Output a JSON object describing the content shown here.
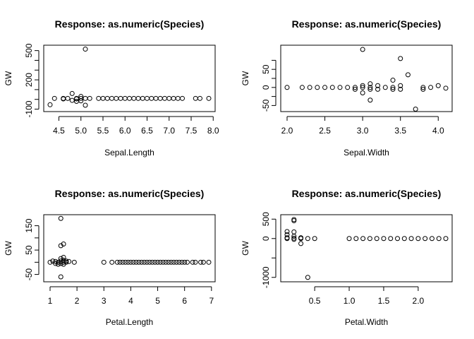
{
  "chart_data": [
    {
      "type": "scatter",
      "title": "Response: as.numeric(Species)",
      "xlabel": "Sepal.Length",
      "ylabel": "GW",
      "xlim": [
        4.3,
        7.9
      ],
      "ylim": [
        -100,
        530
      ],
      "xticks": [
        4.5,
        5.0,
        5.5,
        6.0,
        6.5,
        7.0,
        7.5,
        8.0
      ],
      "xtick_labels": [
        "4.5",
        "5.0",
        "5.5",
        "6.0",
        "6.5",
        "7.0",
        "7.5",
        "8.0"
      ],
      "yticks": [
        -100,
        200,
        500
      ],
      "ytick_labels": [
        "-100",
        "200",
        "500"
      ],
      "y_minor_ticks": [
        0,
        100,
        300,
        400
      ],
      "points": [
        {
          "x": 4.3,
          "y": -55
        },
        {
          "x": 4.4,
          "y": 10
        },
        {
          "x": 4.6,
          "y": 10
        },
        {
          "x": 4.6,
          "y": 5
        },
        {
          "x": 4.7,
          "y": 10
        },
        {
          "x": 4.8,
          "y": 60
        },
        {
          "x": 4.8,
          "y": -10
        },
        {
          "x": 4.9,
          "y": 10
        },
        {
          "x": 4.9,
          "y": -20
        },
        {
          "x": 4.9,
          "y": 5
        },
        {
          "x": 5.0,
          "y": 10
        },
        {
          "x": 5.0,
          "y": 30
        },
        {
          "x": 5.0,
          "y": -15
        },
        {
          "x": 5.1,
          "y": 515
        },
        {
          "x": 5.1,
          "y": 10
        },
        {
          "x": 5.1,
          "y": -60
        },
        {
          "x": 5.2,
          "y": 10
        },
        {
          "x": 5.4,
          "y": 10
        },
        {
          "x": 5.5,
          "y": 10
        },
        {
          "x": 5.6,
          "y": 10
        },
        {
          "x": 5.7,
          "y": 10
        },
        {
          "x": 5.8,
          "y": 10
        },
        {
          "x": 5.9,
          "y": 10
        },
        {
          "x": 6.0,
          "y": 10
        },
        {
          "x": 6.1,
          "y": 10
        },
        {
          "x": 6.2,
          "y": 10
        },
        {
          "x": 6.3,
          "y": 10
        },
        {
          "x": 6.4,
          "y": 10
        },
        {
          "x": 6.5,
          "y": 10
        },
        {
          "x": 6.6,
          "y": 10
        },
        {
          "x": 6.7,
          "y": 10
        },
        {
          "x": 6.8,
          "y": 10
        },
        {
          "x": 6.9,
          "y": 10
        },
        {
          "x": 7.0,
          "y": 10
        },
        {
          "x": 7.1,
          "y": 10
        },
        {
          "x": 7.2,
          "y": 10
        },
        {
          "x": 7.3,
          "y": 10
        },
        {
          "x": 7.6,
          "y": 10
        },
        {
          "x": 7.7,
          "y": 10
        },
        {
          "x": 7.9,
          "y": 10
        }
      ]
    },
    {
      "type": "scatter",
      "title": "Response: as.numeric(Species)",
      "xlabel": "Sepal.Width",
      "ylabel": "GW",
      "xlim": [
        2.0,
        4.1
      ],
      "ylim": [
        -60,
        110
      ],
      "xticks": [
        2.0,
        2.5,
        3.0,
        3.5,
        4.0
      ],
      "xtick_labels": [
        "2.0",
        "2.5",
        "3.0",
        "3.5",
        "4.0"
      ],
      "yticks": [
        -50,
        0,
        50
      ],
      "ytick_labels": [
        "-50",
        "0",
        "50"
      ],
      "y_minor_ticks": [
        -25,
        25,
        75
      ],
      "points": [
        {
          "x": 2.0,
          "y": 0
        },
        {
          "x": 2.2,
          "y": 0
        },
        {
          "x": 2.3,
          "y": 0
        },
        {
          "x": 2.4,
          "y": 0
        },
        {
          "x": 2.5,
          "y": 0
        },
        {
          "x": 2.6,
          "y": 0
        },
        {
          "x": 2.7,
          "y": 0
        },
        {
          "x": 2.8,
          "y": 0
        },
        {
          "x": 2.9,
          "y": 0
        },
        {
          "x": 2.9,
          "y": -5
        },
        {
          "x": 3.0,
          "y": 105
        },
        {
          "x": 3.0,
          "y": 0
        },
        {
          "x": 3.0,
          "y": 5
        },
        {
          "x": 3.0,
          "y": -15
        },
        {
          "x": 3.1,
          "y": 0
        },
        {
          "x": 3.1,
          "y": -5
        },
        {
          "x": 3.1,
          "y": 10
        },
        {
          "x": 3.1,
          "y": -35
        },
        {
          "x": 3.2,
          "y": 5
        },
        {
          "x": 3.2,
          "y": -5
        },
        {
          "x": 3.3,
          "y": 0
        },
        {
          "x": 3.4,
          "y": 20
        },
        {
          "x": 3.4,
          "y": 0
        },
        {
          "x": 3.4,
          "y": -5
        },
        {
          "x": 3.5,
          "y": 80
        },
        {
          "x": 3.5,
          "y": 5
        },
        {
          "x": 3.5,
          "y": -5
        },
        {
          "x": 3.6,
          "y": 35
        },
        {
          "x": 3.7,
          "y": -60
        },
        {
          "x": 3.8,
          "y": 0
        },
        {
          "x": 3.8,
          "y": -5
        },
        {
          "x": 3.9,
          "y": 0
        },
        {
          "x": 4.0,
          "y": 5
        },
        {
          "x": 4.1,
          "y": -2
        }
      ]
    },
    {
      "type": "scatter",
      "title": "Response: as.numeric(Species)",
      "xlabel": "Petal.Length",
      "ylabel": "GW",
      "xlim": [
        1.0,
        6.9
      ],
      "ylim": [
        -70,
        185
      ],
      "xticks": [
        1,
        2,
        3,
        4,
        5,
        6,
        7
      ],
      "xtick_labels": [
        "1",
        "2",
        "3",
        "4",
        "5",
        "6",
        "7"
      ],
      "yticks": [
        -50,
        50,
        150
      ],
      "ytick_labels": [
        "-50",
        "50",
        "150"
      ],
      "y_minor_ticks": [
        0,
        100
      ],
      "points": [
        {
          "x": 1.0,
          "y": 0
        },
        {
          "x": 1.1,
          "y": 5
        },
        {
          "x": 1.2,
          "y": -5
        },
        {
          "x": 1.2,
          "y": 3
        },
        {
          "x": 1.3,
          "y": 0
        },
        {
          "x": 1.3,
          "y": -8
        },
        {
          "x": 1.4,
          "y": 180
        },
        {
          "x": 1.4,
          "y": 68
        },
        {
          "x": 1.4,
          "y": 15
        },
        {
          "x": 1.4,
          "y": 5
        },
        {
          "x": 1.4,
          "y": -5
        },
        {
          "x": 1.4,
          "y": -60
        },
        {
          "x": 1.5,
          "y": 75
        },
        {
          "x": 1.5,
          "y": 20
        },
        {
          "x": 1.5,
          "y": 8
        },
        {
          "x": 1.5,
          "y": 0
        },
        {
          "x": 1.5,
          "y": -8
        },
        {
          "x": 1.6,
          "y": 5
        },
        {
          "x": 1.6,
          "y": 0
        },
        {
          "x": 1.7,
          "y": 3
        },
        {
          "x": 1.9,
          "y": 0
        },
        {
          "x": 3.0,
          "y": 0
        },
        {
          "x": 3.3,
          "y": 0
        },
        {
          "x": 3.5,
          "y": 0
        },
        {
          "x": 3.6,
          "y": 0
        },
        {
          "x": 3.7,
          "y": 0
        },
        {
          "x": 3.8,
          "y": 0
        },
        {
          "x": 3.9,
          "y": 0
        },
        {
          "x": 4.0,
          "y": 0
        },
        {
          "x": 4.1,
          "y": 0
        },
        {
          "x": 4.2,
          "y": 0
        },
        {
          "x": 4.3,
          "y": 0
        },
        {
          "x": 4.4,
          "y": 0
        },
        {
          "x": 4.5,
          "y": 0
        },
        {
          "x": 4.6,
          "y": 0
        },
        {
          "x": 4.7,
          "y": 0
        },
        {
          "x": 4.8,
          "y": 0
        },
        {
          "x": 4.9,
          "y": 0
        },
        {
          "x": 5.0,
          "y": 0
        },
        {
          "x": 5.1,
          "y": 0
        },
        {
          "x": 5.2,
          "y": 0
        },
        {
          "x": 5.3,
          "y": 0
        },
        {
          "x": 5.4,
          "y": 0
        },
        {
          "x": 5.5,
          "y": 0
        },
        {
          "x": 5.6,
          "y": 0
        },
        {
          "x": 5.7,
          "y": 0
        },
        {
          "x": 5.8,
          "y": 0
        },
        {
          "x": 5.9,
          "y": 0
        },
        {
          "x": 6.0,
          "y": 0
        },
        {
          "x": 6.1,
          "y": 0
        },
        {
          "x": 6.3,
          "y": 0
        },
        {
          "x": 6.4,
          "y": 0
        },
        {
          "x": 6.6,
          "y": 0
        },
        {
          "x": 6.7,
          "y": 0
        },
        {
          "x": 6.9,
          "y": 0
        }
      ]
    },
    {
      "type": "scatter",
      "title": "Response: as.numeric(Species)",
      "xlabel": "Petal.Width",
      "ylabel": "GW",
      "xlim": [
        0.1,
        2.4
      ],
      "ylim": [
        -1050,
        550
      ],
      "xticks": [
        0.5,
        1.0,
        1.5,
        2.0
      ],
      "xtick_labels": [
        "0.5",
        "1.0",
        "1.5",
        "2.0"
      ],
      "yticks": [
        -1000,
        0,
        500
      ],
      "ytick_labels": [
        "-1000",
        "0",
        "500"
      ],
      "y_minor_ticks": [
        -500
      ],
      "points": [
        {
          "x": 0.1,
          "y": 180
        },
        {
          "x": 0.1,
          "y": 100
        },
        {
          "x": 0.1,
          "y": 20
        },
        {
          "x": 0.1,
          "y": 0
        },
        {
          "x": 0.2,
          "y": 490
        },
        {
          "x": 0.2,
          "y": 460
        },
        {
          "x": 0.2,
          "y": 170
        },
        {
          "x": 0.2,
          "y": 60
        },
        {
          "x": 0.2,
          "y": 10
        },
        {
          "x": 0.2,
          "y": -20
        },
        {
          "x": 0.3,
          "y": 20
        },
        {
          "x": 0.3,
          "y": -130
        },
        {
          "x": 0.3,
          "y": 0
        },
        {
          "x": 0.4,
          "y": -1000
        },
        {
          "x": 0.4,
          "y": 0
        },
        {
          "x": 0.5,
          "y": 0
        },
        {
          "x": 1.0,
          "y": 0
        },
        {
          "x": 1.1,
          "y": 0
        },
        {
          "x": 1.2,
          "y": 0
        },
        {
          "x": 1.3,
          "y": 0
        },
        {
          "x": 1.4,
          "y": 0
        },
        {
          "x": 1.5,
          "y": 0
        },
        {
          "x": 1.6,
          "y": 0
        },
        {
          "x": 1.7,
          "y": 0
        },
        {
          "x": 1.8,
          "y": 0
        },
        {
          "x": 1.9,
          "y": 0
        },
        {
          "x": 2.0,
          "y": 0
        },
        {
          "x": 2.1,
          "y": 0
        },
        {
          "x": 2.2,
          "y": 0
        },
        {
          "x": 2.3,
          "y": 0
        },
        {
          "x": 2.4,
          "y": 0
        }
      ]
    }
  ]
}
